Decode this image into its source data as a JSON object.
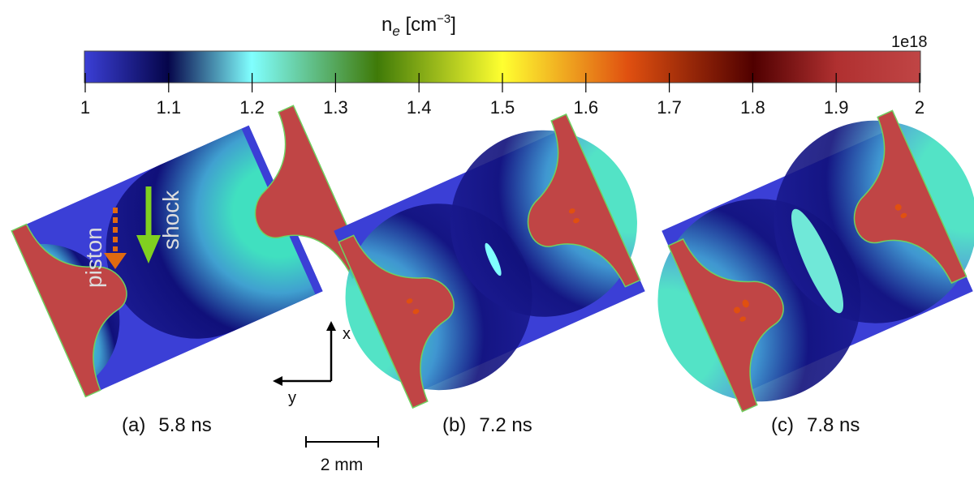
{
  "colorbar": {
    "title_base": "n",
    "title_sub": "e",
    "title_unit": " [cm",
    "title_exp": "−3",
    "title_close": "]",
    "multiplier": "1e18",
    "range": [
      1,
      2
    ],
    "ticks": [
      "1",
      "1.1",
      "1.2",
      "1.3",
      "1.4",
      "1.5",
      "1.6",
      "1.7",
      "1.8",
      "1.9",
      "2"
    ],
    "colors": [
      "#3b3fd6",
      "#05054a",
      "#80ffff",
      "#3f7a08",
      "#ffff30",
      "#e05010",
      "#500000",
      "#c04545"
    ]
  },
  "panels": [
    {
      "label": "(a)",
      "time": "5.8 ns"
    },
    {
      "label": "(b)",
      "time": "7.2 ns"
    },
    {
      "label": "(c)",
      "time": "7.8 ns"
    }
  ],
  "annotations": {
    "piston": "piston",
    "shock": "shock",
    "piston_color": "#e06a10",
    "shock_color": "#80d020"
  },
  "axes": {
    "x": "x",
    "y": "y"
  },
  "scale_bar": {
    "label": "2 mm"
  }
}
